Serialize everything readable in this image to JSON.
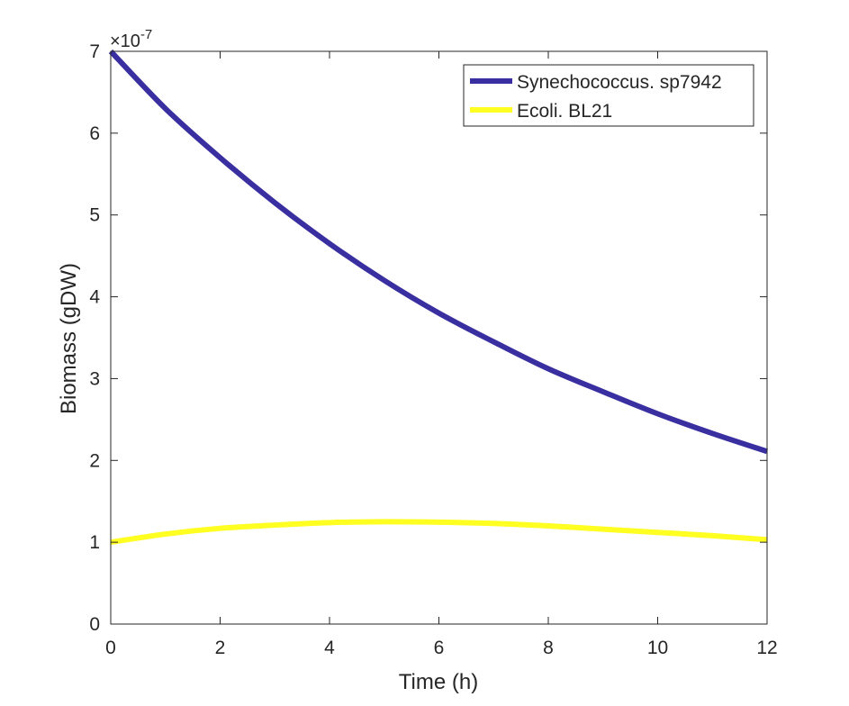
{
  "chart_data": {
    "type": "line",
    "xlabel": "Time (h)",
    "ylabel": "Biomass (gDW)",
    "exponent_base": "×10",
    "exponent_power": "-7",
    "xlim": [
      0,
      12
    ],
    "ylim": [
      0,
      7
    ],
    "xticks": [
      0,
      2,
      4,
      6,
      8,
      10,
      12
    ],
    "yticks": [
      0,
      1,
      2,
      3,
      4,
      5,
      6,
      7
    ],
    "grid": false,
    "legend_position": "top-right",
    "x": [
      0,
      1,
      2,
      3,
      4,
      5,
      6,
      7,
      8,
      9,
      10,
      11,
      12
    ],
    "series": [
      {
        "name": "Synechococcus. sp7942",
        "color": "#3a2fa0",
        "values": [
          7.0,
          6.3,
          5.7,
          5.15,
          4.65,
          4.2,
          3.8,
          3.45,
          3.12,
          2.84,
          2.57,
          2.33,
          2.11
        ]
      },
      {
        "name": "Ecoli. BL21",
        "color": "#ffff22",
        "values": [
          1.0,
          1.1,
          1.17,
          1.21,
          1.24,
          1.25,
          1.245,
          1.23,
          1.2,
          1.16,
          1.12,
          1.08,
          1.03
        ]
      }
    ]
  }
}
